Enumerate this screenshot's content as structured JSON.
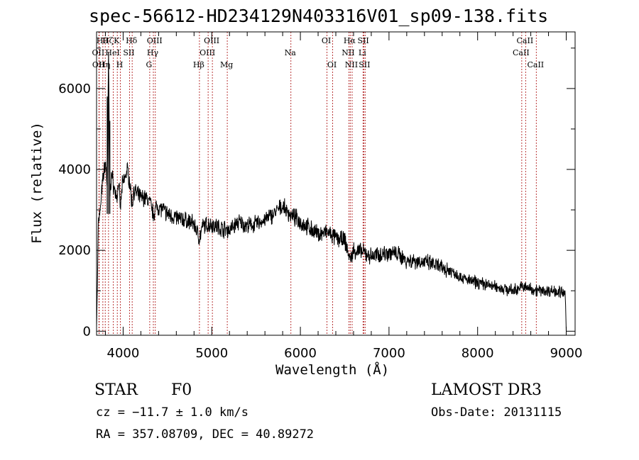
{
  "title": "spec-56612-HD234129N403316V01_sp09-138.fits",
  "info": {
    "object_class": "STAR",
    "subclass": "F0",
    "redshift_line": "cz = −11.7 ± 1.0 km/s",
    "coords_line": "RA = 357.08709, DEC =  40.89272",
    "survey": "LAMOST DR3",
    "obs_date_line": "Obs-Date: 20131115"
  },
  "chart_data": {
    "type": "line",
    "title": "spec-56612-HD234129N403316V01_sp09-138.fits",
    "xlabel": "Wavelength (Å)",
    "ylabel": "Flux (relative)",
    "xlim": [
      3700,
      9100
    ],
    "ylim": [
      -100,
      7400
    ],
    "xticks": [
      4000,
      5000,
      6000,
      7000,
      8000,
      9000
    ],
    "yticks": [
      0,
      2000,
      4000,
      6000
    ],
    "series": [
      {
        "name": "flux",
        "noise": 120,
        "x": [
          3700,
          3710,
          3720,
          3740,
          3760,
          3780,
          3800,
          3820,
          3835,
          3850,
          3870,
          3900,
          3930,
          3950,
          3968,
          3990,
          4020,
          4050,
          4080,
          4101,
          4120,
          4150,
          4200,
          4250,
          4300,
          4340,
          4380,
          4450,
          4500,
          4600,
          4700,
          4800,
          4861,
          4900,
          5000,
          5100,
          5200,
          5300,
          5400,
          5500,
          5600,
          5700,
          5750,
          5800,
          5850,
          5900,
          5950,
          6000,
          6100,
          6200,
          6300,
          6400,
          6500,
          6563,
          6600,
          6700,
          6800,
          6900,
          7000,
          7100,
          7200,
          7300,
          7400,
          7500,
          7600,
          7700,
          7800,
          7900,
          8000,
          8100,
          8200,
          8300,
          8400,
          8500,
          8600,
          8700,
          8800,
          8900,
          8990,
          9000
        ],
        "y": [
          100,
          1200,
          2800,
          2900,
          3500,
          3900,
          4200,
          3600,
          6800,
          3400,
          3900,
          3500,
          3300,
          3700,
          3000,
          3600,
          3800,
          4000,
          3600,
          3100,
          3500,
          3400,
          3300,
          3300,
          3200,
          2900,
          3100,
          3000,
          2900,
          2800,
          2750,
          2650,
          2300,
          2600,
          2650,
          2550,
          2500,
          2700,
          2600,
          2650,
          2750,
          2900,
          3000,
          3100,
          2950,
          2850,
          2800,
          2700,
          2550,
          2400,
          2450,
          2300,
          2250,
          1750,
          2000,
          1950,
          1850,
          1900,
          1950,
          1900,
          1750,
          1750,
          1700,
          1650,
          1550,
          1500,
          1350,
          1250,
          1200,
          1150,
          1100,
          1050,
          1000,
          1100,
          1050,
          1000,
          1000,
          1000,
          900,
          0
        ]
      }
    ],
    "spikes": [
      {
        "x": 3820,
        "y": 5800
      },
      {
        "x": 3835,
        "y": 6900
      },
      {
        "x": 3850,
        "y": 5200
      }
    ],
    "lines": [
      {
        "x": 3727,
        "label": "OII",
        "row": 1
      },
      {
        "x": 3730,
        "label": "OII",
        "row": 2
      },
      {
        "x": 3771,
        "label": "Hθ",
        "row": 0
      },
      {
        "x": 3798,
        "label": "Hη",
        "row": 2
      },
      {
        "x": 3835,
        "label": "Hζ",
        "row": 0
      },
      {
        "x": 3889,
        "label": "HeI",
        "row": 1
      },
      {
        "x": 3934,
        "label": "K",
        "row": 0
      },
      {
        "x": 3969,
        "label": "H",
        "row": 2
      },
      {
        "x": 4072,
        "label": "SII",
        "row": 1
      },
      {
        "x": 4102,
        "label": "Hδ",
        "row": 0
      },
      {
        "x": 4300,
        "label": "G",
        "row": 2
      },
      {
        "x": 4341,
        "label": "Hγ",
        "row": 1
      },
      {
        "x": 4363,
        "label": "OIII",
        "row": 0
      },
      {
        "x": 4861,
        "label": "Hβ",
        "row": 2
      },
      {
        "x": 4959,
        "label": "OIII",
        "row": 1
      },
      {
        "x": 5007,
        "label": "OIII",
        "row": 0
      },
      {
        "x": 5175,
        "label": "Mg",
        "row": 2
      },
      {
        "x": 5893,
        "label": "Na",
        "row": 1
      },
      {
        "x": 6300,
        "label": "OI",
        "row": 0
      },
      {
        "x": 6364,
        "label": "OI",
        "row": 2
      },
      {
        "x": 6548,
        "label": "NII",
        "row": 1
      },
      {
        "x": 6563,
        "label": "Hα",
        "row": 0
      },
      {
        "x": 6584,
        "label": "NII",
        "row": 2
      },
      {
        "x": 6707,
        "label": "Li",
        "row": 1
      },
      {
        "x": 6717,
        "label": "SII",
        "row": 0
      },
      {
        "x": 6731,
        "label": "SII",
        "row": 2
      },
      {
        "x": 8498,
        "label": "CaII",
        "row": 1
      },
      {
        "x": 8542,
        "label": "CaII",
        "row": 0
      },
      {
        "x": 8662,
        "label": "CaII",
        "row": 2
      }
    ]
  }
}
